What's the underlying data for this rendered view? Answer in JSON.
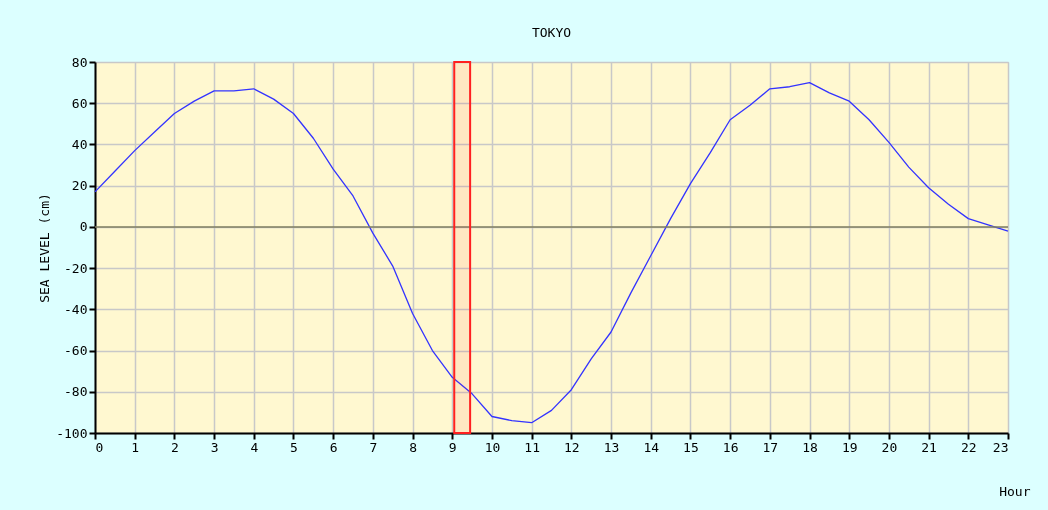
{
  "chart_data": {
    "type": "line",
    "title": "TOKYO",
    "xlabel": "Hour",
    "ylabel": "SEA LEVEL (cm)",
    "x": [
      0,
      0.5,
      1,
      1.5,
      2,
      2.5,
      3,
      3.5,
      4,
      4.5,
      5,
      5.5,
      6,
      6.5,
      7,
      7.5,
      8,
      8.5,
      9,
      9.5,
      10,
      10.5,
      11,
      11.5,
      12,
      12.5,
      13,
      13.5,
      14,
      14.5,
      15,
      15.5,
      16,
      16.5,
      17,
      17.5,
      18,
      18.5,
      19,
      19.5,
      20,
      20.5,
      21,
      21.5,
      22,
      22.5,
      23
    ],
    "series": [
      {
        "color": "#3333ff",
        "values": [
          17,
          27,
          37,
          46,
          55,
          61,
          66,
          66,
          67,
          62,
          55,
          43,
          28,
          15,
          -3,
          -19,
          -42,
          -60,
          -73,
          -81,
          -92,
          -94,
          -95,
          -89,
          -79,
          -64,
          -51,
          -32,
          -14,
          4,
          21,
          36,
          52,
          59,
          67,
          68,
          70,
          65,
          61,
          52,
          41,
          29,
          19,
          11,
          4,
          1,
          -2
        ]
      }
    ],
    "xlim": [
      0,
      23
    ],
    "xticks": [
      0,
      1,
      2,
      3,
      4,
      5,
      6,
      7,
      8,
      9,
      10,
      11,
      12,
      13,
      14,
      15,
      16,
      17,
      18,
      19,
      20,
      21,
      22,
      23
    ],
    "ylim": [
      -100,
      80
    ],
    "yticks": [
      -100,
      -80,
      -60,
      -40,
      -20,
      0,
      20,
      40,
      60,
      80
    ],
    "grid": true,
    "marker": "none",
    "line_style": "solid",
    "ref_lines": [
      {
        "axis": "y",
        "value": 0,
        "color": "#807f60"
      }
    ],
    "bands": [
      {
        "axis": "x",
        "from": 9.05,
        "to": 9.45,
        "color": "#ff2020"
      }
    ]
  }
}
